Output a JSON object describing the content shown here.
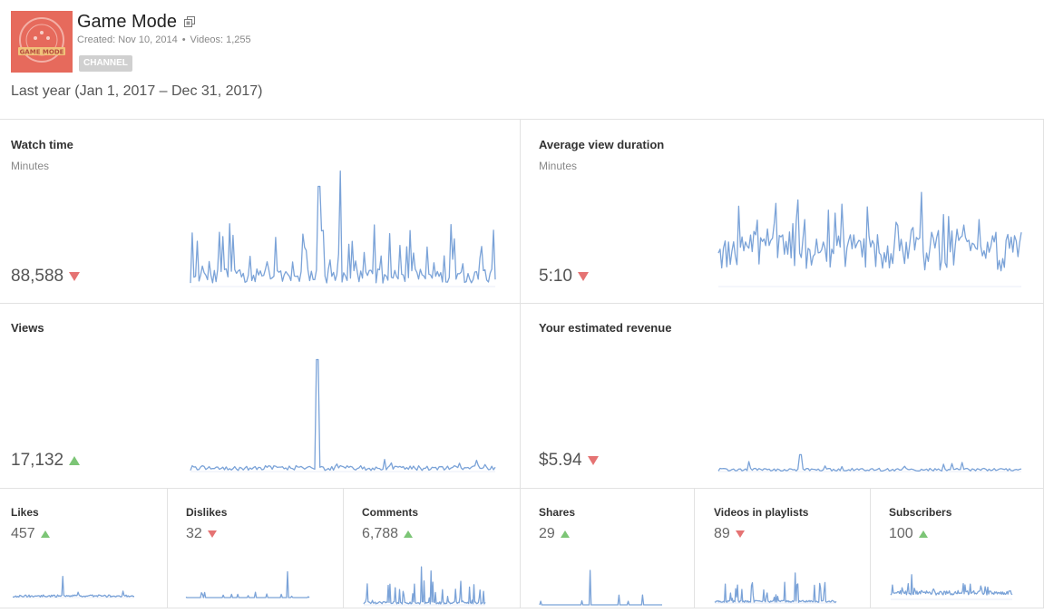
{
  "channel": {
    "title": "Game Mode",
    "created": "Created: Nov 10, 2014",
    "videos": "Videos: 1,255",
    "meta_separator": "•",
    "badge": "CHANNEL",
    "thumbnail_text": "GAME MODE",
    "thumbnail_color": "#e66a5c"
  },
  "period": "Last year (Jan 1, 2017 – Dec 31, 2017)",
  "colors": {
    "line": "#7ba3d8",
    "down": "#e57373",
    "up": "#7cc576"
  },
  "metrics": {
    "watch_time": {
      "title": "Watch time",
      "unit": "Minutes",
      "value": "88,588",
      "trend": "down"
    },
    "avg_view_duration": {
      "title": "Average view duration",
      "unit": "Minutes",
      "value": "5:10",
      "trend": "down"
    },
    "views": {
      "title": "Views",
      "value": "17,132",
      "trend": "up"
    },
    "revenue": {
      "title": "Your estimated revenue",
      "value": "$5.94",
      "trend": "down"
    },
    "likes": {
      "title": "Likes",
      "value": "457",
      "trend": "up"
    },
    "dislikes": {
      "title": "Dislikes",
      "value": "32",
      "trend": "down"
    },
    "comments": {
      "title": "Comments",
      "value": "6,788",
      "trend": "up"
    },
    "shares": {
      "title": "Shares",
      "value": "29",
      "trend": "up"
    },
    "videos_in_playlists": {
      "title": "Videos in playlists",
      "value": "89",
      "trend": "down"
    },
    "subscribers": {
      "title": "Subscribers",
      "value": "100",
      "trend": "up"
    }
  }
}
